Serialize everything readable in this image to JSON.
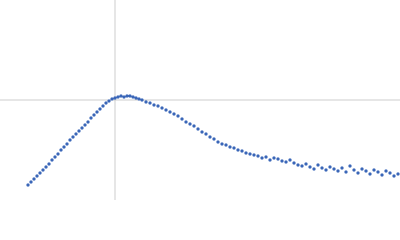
{
  "chart_data": {
    "type": "scatter",
    "color": "#3a66b8",
    "xlim": [
      0,
      400
    ],
    "ylim": [
      0,
      200
    ],
    "vlines": [
      115
    ],
    "hlines": [
      100
    ],
    "x": [
      28,
      31,
      34,
      37,
      40,
      43,
      46,
      49,
      52,
      55,
      58,
      61,
      64,
      67,
      70,
      73,
      76,
      79,
      82,
      85,
      88,
      91,
      94,
      97,
      100,
      103,
      106,
      109,
      112,
      115,
      118,
      121,
      124,
      127,
      130,
      133,
      136,
      139,
      142,
      146,
      150,
      154,
      158,
      162,
      166,
      170,
      174,
      178,
      182,
      186,
      190,
      194,
      198,
      202,
      206,
      210,
      214,
      218,
      222,
      226,
      230,
      234,
      238,
      242,
      246,
      250,
      254,
      258,
      262,
      266,
      270,
      274,
      278,
      282,
      286,
      290,
      294,
      298,
      302,
      306,
      310,
      314,
      318,
      322,
      326,
      330,
      334,
      338,
      342,
      346,
      350,
      354,
      358,
      362,
      366,
      370,
      374,
      378,
      382,
      386,
      390,
      394,
      398
    ],
    "values": [
      15,
      18,
      21,
      24,
      27,
      30,
      33,
      36,
      40,
      43,
      46,
      50,
      53,
      56,
      60,
      63,
      66,
      69,
      72,
      75,
      78,
      82,
      85,
      88,
      91,
      94,
      97,
      99,
      101,
      102,
      103,
      104,
      103,
      104,
      104,
      103,
      102,
      101,
      100,
      98,
      97,
      95,
      94,
      92,
      90,
      88,
      86,
      84,
      81,
      78,
      76,
      74,
      71,
      68,
      66,
      63,
      61,
      58,
      56,
      55,
      53,
      52,
      50,
      49,
      47,
      46,
      45,
      44,
      42,
      43,
      40,
      42,
      41,
      39,
      38,
      40,
      37,
      35,
      34,
      36,
      33,
      31,
      35,
      32,
      30,
      33,
      31,
      29,
      32,
      28,
      34,
      30,
      27,
      31,
      29,
      26,
      30,
      28,
      25,
      29,
      27,
      24,
      26
    ]
  }
}
